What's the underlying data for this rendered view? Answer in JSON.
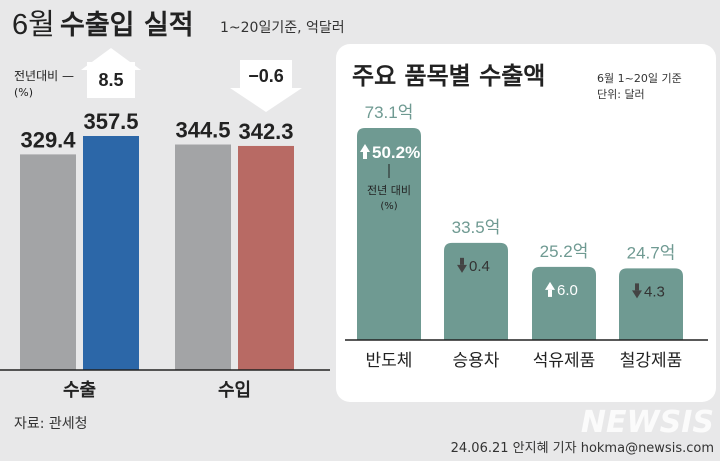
{
  "header": {
    "title_month": "6월",
    "title_bold": "수출입 실적",
    "subtitle": "1~20일기준, 억달러"
  },
  "left": {
    "yoy_label_line1": "전년대비 —",
    "yoy_label_line2": "(%)",
    "source": "자료: 관세청"
  },
  "right": {
    "title": "주요 품목별 수출액",
    "note_line1": "6월 1~20일 기준",
    "note_line2": "단위: 달러",
    "yoy_label_line1": "전년 대비",
    "yoy_label_line2": "(%)"
  },
  "footer": {
    "credit": "24.06.21 안지혜 기자 hokma@newsis.com",
    "watermark": "NEWSIS"
  },
  "colors": {
    "background": "#e8e8e9",
    "prev_bar": "#a3a4a6",
    "export_bar": "#2c67a8",
    "import_bar": "#b86a64",
    "item_bar": "#6f9a92",
    "panel": "#ffffff",
    "text": "#222222"
  },
  "chart_data": [
    {
      "type": "bar",
      "title": "6월 수출입 실적",
      "unit": "억달러",
      "categories": [
        "수출",
        "수입"
      ],
      "series": [
        {
          "values": [
            329.4,
            344.5
          ]
        },
        {
          "values": [
            357.5,
            342.3
          ]
        }
      ],
      "value_labels": [
        [
          "329.4",
          "357.5"
        ],
        [
          "344.5",
          "342.3"
        ]
      ],
      "yoy_change": [
        8.5,
        -0.6
      ],
      "yoy_labels": [
        "8.5",
        "−0.6"
      ],
      "yoy_direction": [
        "up",
        "down"
      ],
      "ylim": [
        0,
        380
      ]
    },
    {
      "type": "bar",
      "title": "주요 품목별 수출액",
      "categories": [
        "반도체",
        "승용차",
        "석유제품",
        "철강제품"
      ],
      "values": [
        73.1,
        33.5,
        25.2,
        24.7
      ],
      "value_labels": [
        "73.1억",
        "33.5억",
        "25.2억",
        "24.7억"
      ],
      "yoy_change": [
        50.2,
        -0.4,
        6.0,
        -4.3
      ],
      "yoy_labels": [
        "50.2%",
        "0.4",
        "6.0",
        "4.3"
      ],
      "yoy_direction": [
        "up",
        "down",
        "up",
        "down"
      ],
      "ylim": [
        0,
        80
      ]
    }
  ]
}
